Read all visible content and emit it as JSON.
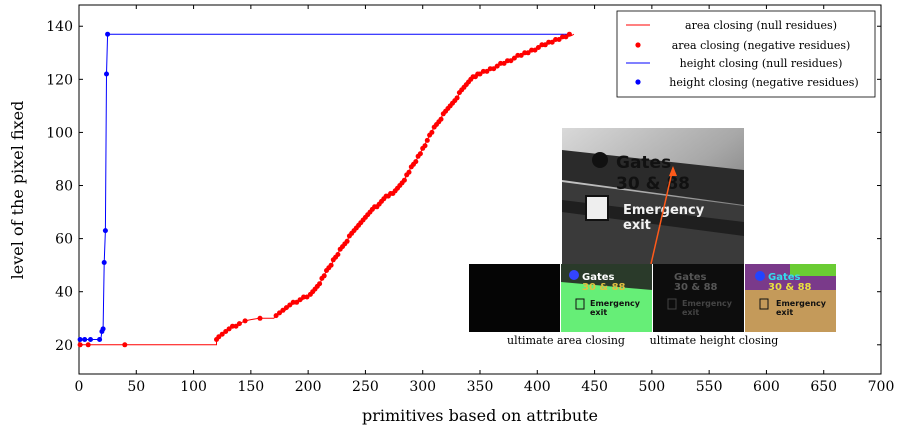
{
  "chart_data": {
    "type": "line",
    "xlabel": "primitives based on attribute",
    "ylabel": "level of the pixel fixed",
    "xlim": [
      0,
      700
    ],
    "ylim": [
      9,
      148
    ],
    "x_ticks": [
      0,
      50,
      100,
      150,
      200,
      250,
      300,
      350,
      400,
      450,
      500,
      550,
      600,
      650,
      700
    ],
    "y_ticks": [
      20,
      40,
      60,
      80,
      100,
      120,
      140
    ],
    "grid": false,
    "legend_position": "top-right",
    "series": [
      {
        "name": "area closing (null residues)",
        "kind": "line",
        "color": "#ff0000",
        "points": [
          [
            0,
            20
          ],
          [
            120,
            20
          ],
          [
            120,
            22
          ],
          [
            122,
            23
          ],
          [
            125,
            24
          ],
          [
            130,
            25.5
          ],
          [
            135,
            27
          ],
          [
            140,
            28
          ],
          [
            145,
            29
          ],
          [
            150,
            29.5
          ],
          [
            157,
            30
          ],
          [
            170,
            30
          ],
          [
            172,
            31
          ],
          [
            180,
            33
          ],
          [
            185,
            35
          ],
          [
            190,
            36
          ],
          [
            195,
            37
          ],
          [
            200,
            38
          ],
          [
            205,
            40
          ],
          [
            210,
            43
          ],
          [
            215,
            47
          ],
          [
            220,
            50
          ],
          [
            225,
            54
          ],
          [
            230,
            57
          ],
          [
            235,
            60
          ],
          [
            240,
            63
          ],
          [
            245,
            66
          ],
          [
            250,
            68
          ],
          [
            255,
            70
          ],
          [
            260,
            72
          ],
          [
            265,
            74
          ],
          [
            270,
            76
          ],
          [
            275,
            77
          ],
          [
            280,
            80
          ],
          [
            285,
            83
          ],
          [
            290,
            87
          ],
          [
            295,
            90
          ],
          [
            300,
            94
          ],
          [
            305,
            98
          ],
          [
            310,
            102
          ],
          [
            315,
            105
          ],
          [
            320,
            108
          ],
          [
            325,
            111
          ],
          [
            330,
            113
          ],
          [
            335,
            117
          ],
          [
            340,
            119
          ],
          [
            345,
            121
          ],
          [
            350,
            122
          ],
          [
            355,
            123
          ],
          [
            360,
            124
          ],
          [
            365,
            125
          ],
          [
            370,
            126
          ],
          [
            375,
            127
          ],
          [
            380,
            128
          ],
          [
            385,
            129
          ],
          [
            390,
            130
          ],
          [
            395,
            131
          ],
          [
            400,
            132
          ],
          [
            405,
            133
          ],
          [
            410,
            134
          ],
          [
            415,
            135
          ],
          [
            420,
            135.5
          ],
          [
            425,
            136
          ],
          [
            430,
            136.5
          ],
          [
            432,
            137
          ]
        ]
      },
      {
        "name": "area closing (negative residues)",
        "kind": "scatter",
        "color": "#ff0000",
        "points": [
          [
            1,
            20
          ],
          [
            8,
            20
          ],
          [
            40,
            20
          ],
          [
            120,
            22
          ],
          [
            122,
            23
          ],
          [
            125,
            24
          ],
          [
            128,
            25
          ],
          [
            131,
            26
          ],
          [
            134,
            27
          ],
          [
            137,
            27
          ],
          [
            140,
            28
          ],
          [
            145,
            29
          ],
          [
            158,
            30
          ],
          [
            172,
            31
          ],
          [
            175,
            32
          ],
          [
            178,
            33
          ],
          [
            181,
            34
          ],
          [
            184,
            35
          ],
          [
            187,
            36
          ],
          [
            190,
            36
          ],
          [
            193,
            37
          ],
          [
            196,
            38
          ],
          [
            199,
            38
          ],
          [
            202,
            39
          ],
          [
            204,
            40
          ],
          [
            206,
            41
          ],
          [
            208,
            42
          ],
          [
            210,
            43
          ],
          [
            212,
            45
          ],
          [
            214,
            46
          ],
          [
            216,
            48
          ],
          [
            218,
            49
          ],
          [
            220,
            50
          ],
          [
            222,
            52
          ],
          [
            224,
            53
          ],
          [
            226,
            54
          ],
          [
            228,
            56
          ],
          [
            230,
            57
          ],
          [
            232,
            58
          ],
          [
            234,
            59
          ],
          [
            236,
            61
          ],
          [
            238,
            62
          ],
          [
            240,
            63
          ],
          [
            242,
            64
          ],
          [
            244,
            65
          ],
          [
            246,
            66
          ],
          [
            248,
            67
          ],
          [
            250,
            68
          ],
          [
            252,
            69
          ],
          [
            254,
            70
          ],
          [
            256,
            71
          ],
          [
            258,
            72
          ],
          [
            260,
            72
          ],
          [
            262,
            73
          ],
          [
            264,
            74
          ],
          [
            266,
            75
          ],
          [
            268,
            76
          ],
          [
            270,
            76
          ],
          [
            272,
            77
          ],
          [
            274,
            77
          ],
          [
            276,
            78
          ],
          [
            278,
            79
          ],
          [
            280,
            80
          ],
          [
            282,
            81
          ],
          [
            284,
            82
          ],
          [
            286,
            84
          ],
          [
            288,
            85
          ],
          [
            290,
            87
          ],
          [
            292,
            88
          ],
          [
            294,
            89
          ],
          [
            296,
            91
          ],
          [
            298,
            92
          ],
          [
            300,
            94
          ],
          [
            302,
            95
          ],
          [
            304,
            97
          ],
          [
            306,
            99
          ],
          [
            308,
            100
          ],
          [
            310,
            102
          ],
          [
            312,
            103
          ],
          [
            314,
            104
          ],
          [
            316,
            105
          ],
          [
            318,
            107
          ],
          [
            320,
            108
          ],
          [
            322,
            109
          ],
          [
            324,
            110
          ],
          [
            326,
            111
          ],
          [
            328,
            112
          ],
          [
            330,
            113
          ],
          [
            332,
            115
          ],
          [
            334,
            116
          ],
          [
            336,
            117
          ],
          [
            338,
            118
          ],
          [
            340,
            119
          ],
          [
            342,
            120
          ],
          [
            344,
            121
          ],
          [
            346,
            121
          ],
          [
            348,
            122
          ],
          [
            350,
            122
          ],
          [
            353,
            123
          ],
          [
            356,
            123
          ],
          [
            359,
            124
          ],
          [
            362,
            124
          ],
          [
            365,
            125
          ],
          [
            368,
            126
          ],
          [
            371,
            126
          ],
          [
            374,
            127
          ],
          [
            377,
            127
          ],
          [
            380,
            128
          ],
          [
            383,
            129
          ],
          [
            386,
            129
          ],
          [
            389,
            130
          ],
          [
            392,
            130
          ],
          [
            395,
            131
          ],
          [
            398,
            131
          ],
          [
            401,
            132
          ],
          [
            404,
            133
          ],
          [
            407,
            133
          ],
          [
            410,
            134
          ],
          [
            413,
            134
          ],
          [
            416,
            135
          ],
          [
            419,
            135
          ],
          [
            422,
            136
          ],
          [
            425,
            136
          ],
          [
            428,
            137
          ]
        ]
      },
      {
        "name": "height closing (null residues)",
        "kind": "line",
        "color": "#0000ff",
        "points": [
          [
            0,
            22
          ],
          [
            19,
            22
          ],
          [
            20,
            25
          ],
          [
            21,
            26
          ],
          [
            22,
            51
          ],
          [
            23,
            63
          ],
          [
            24,
            122
          ],
          [
            25,
            137
          ],
          [
            430,
            137
          ]
        ]
      },
      {
        "name": "height closing (negative residues)",
        "kind": "scatter",
        "color": "#0000ff",
        "points": [
          [
            1,
            22
          ],
          [
            5,
            22
          ],
          [
            10,
            22
          ],
          [
            18,
            22
          ],
          [
            20,
            25
          ],
          [
            21,
            26
          ],
          [
            22,
            51
          ],
          [
            23,
            63
          ],
          [
            24,
            122
          ],
          [
            25,
            137
          ]
        ]
      }
    ],
    "inset": {
      "main_image_text": [
        "Gates",
        "30 & 88",
        "Emergency",
        "exit"
      ],
      "captions": [
        "ultimate area closing",
        "ultimate height closing"
      ]
    }
  }
}
